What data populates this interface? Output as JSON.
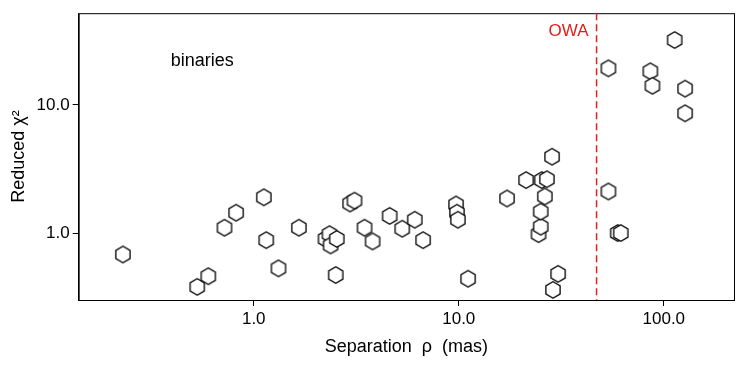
{
  "chart_data": {
    "type": "scatter",
    "annotation": "binaries",
    "x_label": "Separation  ρ  (mas)",
    "y_label": "Reduced χ²",
    "log": true,
    "grid": false,
    "marker": "hexagon",
    "color": "#000000",
    "xlim": [
      0.14,
      220
    ],
    "ylim": [
      0.3,
      52
    ],
    "xticks": [
      {
        "value": 1,
        "label": "1.0"
      },
      {
        "value": 10,
        "label": "10.0"
      },
      {
        "value": 100,
        "label": "100.0"
      }
    ],
    "yticks": [
      {
        "value": 1,
        "label": "1.0"
      },
      {
        "value": 10,
        "label": "10.0"
      }
    ],
    "vline": {
      "x": 47,
      "label": "OWA",
      "color": "#e0201b",
      "line_style": "dashed"
    },
    "x": [
      0.23,
      0.53,
      0.6,
      0.72,
      0.82,
      1.12,
      1.15,
      1.32,
      1.66,
      2.24,
      2.34,
      2.37,
      2.51,
      2.54,
      2.95,
      3.1,
      3.47,
      3.8,
      4.6,
      5.3,
      6.1,
      6.7,
      9.7,
      9.8,
      9.9,
      11.1,
      17.2,
      21.3,
      24.5,
      25.1,
      25.1,
      25.4,
      26.3,
      26.9,
      28.5,
      28.8,
      30.5,
      53.7,
      53.7,
      59.6,
      61.7,
      86,
      88,
      113,
      127,
      127
    ],
    "values": [
      0.68,
      0.38,
      0.46,
      1.1,
      1.44,
      1.9,
      0.88,
      0.53,
      1.1,
      0.9,
      0.98,
      0.8,
      0.47,
      0.9,
      1.7,
      1.79,
      1.1,
      0.86,
      1.36,
      1.08,
      1.27,
      0.88,
      1.67,
      1.44,
      1.27,
      0.44,
      1.86,
      2.59,
      0.98,
      1.12,
      1.47,
      2.59,
      1.93,
      2.63,
      3.94,
      0.36,
      0.48,
      19.3,
      2.11,
      1.0,
      1.0,
      18.3,
      14.1,
      32.1,
      13.4,
      8.6
    ]
  }
}
